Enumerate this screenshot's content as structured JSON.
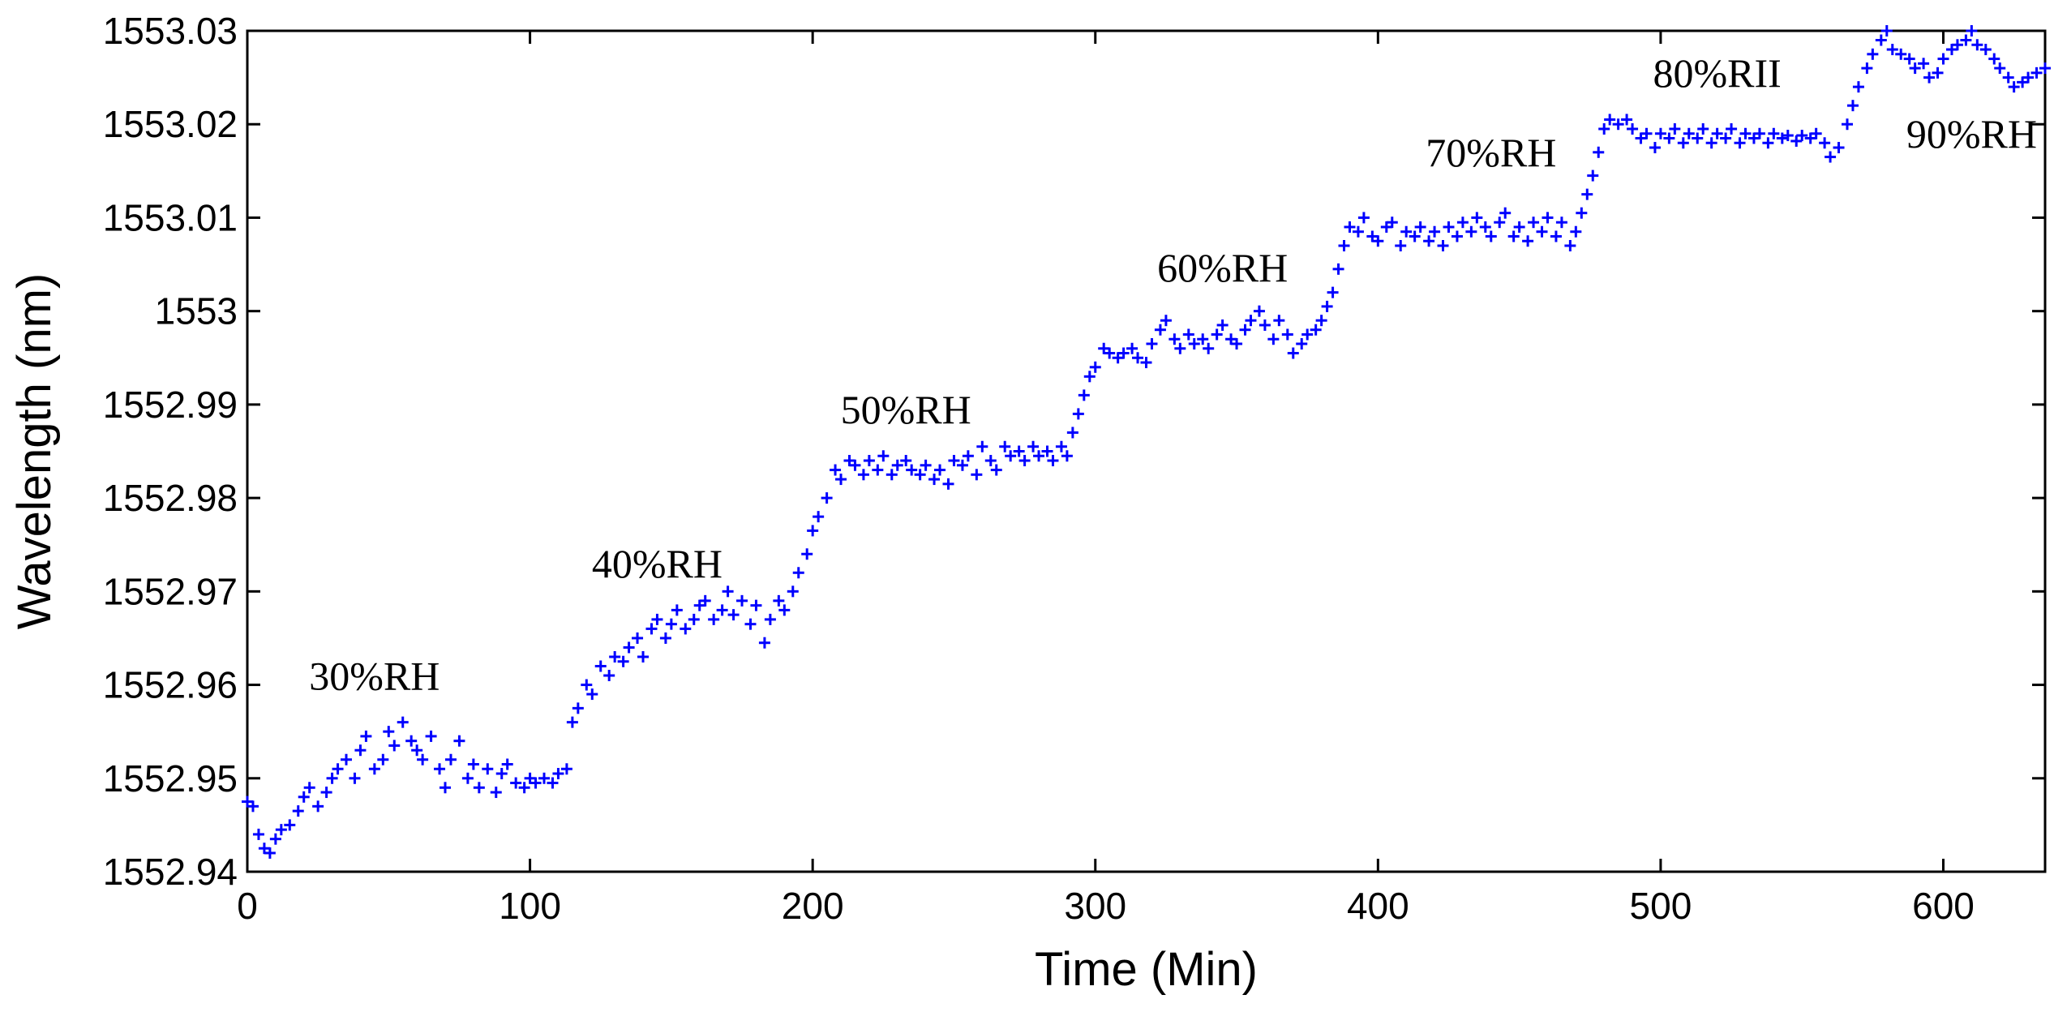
{
  "chart_data": {
    "type": "scatter",
    "title": "",
    "xlabel": "Time (Min)",
    "ylabel": "Wavelength (nm)",
    "xlim": [
      0,
      636
    ],
    "ylim": [
      1552.94,
      1553.03
    ],
    "x_ticks": [
      0,
      100,
      200,
      300,
      400,
      500,
      600
    ],
    "x_tick_labels": [
      "0",
      "100",
      "200",
      "300",
      "400",
      "500",
      "600"
    ],
    "y_ticks": [
      1552.94,
      1552.95,
      1552.96,
      1552.97,
      1552.98,
      1552.99,
      1553.0,
      1553.01,
      1553.02,
      1553.03
    ],
    "y_tick_labels": [
      "1552.94",
      "1552.95",
      "1552.96",
      "1552.97",
      "1552.98",
      "1552.99",
      "1553",
      "1553.01",
      "1553.02",
      "1553.03"
    ],
    "grid": false,
    "marker": "+",
    "series_color": "#0000ff",
    "annotations": [
      {
        "text": "30%RH",
        "x": 45,
        "y": 1552.9595
      },
      {
        "text": "40%RH",
        "x": 145,
        "y": 1552.9715
      },
      {
        "text": "50%RH",
        "x": 233,
        "y": 1552.988
      },
      {
        "text": "60%RH",
        "x": 345,
        "y": 1553.0032
      },
      {
        "text": "70%RH",
        "x": 440,
        "y": 1553.0155
      },
      {
        "text": "80%RII",
        "x": 520,
        "y": 1553.024
      },
      {
        "text": "90%RH",
        "x": 610,
        "y": 1553.0175
      }
    ],
    "segments": [
      {
        "label": "30%RH",
        "points": [
          [
            0,
            1552.9475
          ],
          [
            2,
            1552.947
          ],
          [
            4,
            1552.944
          ],
          [
            6,
            1552.9425
          ],
          [
            8,
            1552.942
          ],
          [
            10,
            1552.9435
          ],
          [
            12,
            1552.9445
          ],
          [
            15,
            1552.945
          ],
          [
            18,
            1552.9465
          ],
          [
            20,
            1552.948
          ],
          [
            22,
            1552.949
          ],
          [
            25,
            1552.947
          ],
          [
            28,
            1552.9485
          ],
          [
            30,
            1552.95
          ],
          [
            32,
            1552.951
          ],
          [
            35,
            1552.952
          ],
          [
            38,
            1552.95
          ],
          [
            40,
            1552.953
          ],
          [
            42,
            1552.9545
          ],
          [
            45,
            1552.951
          ],
          [
            48,
            1552.952
          ],
          [
            50,
            1552.955
          ],
          [
            52,
            1552.9535
          ],
          [
            55,
            1552.956
          ],
          [
            58,
            1552.954
          ],
          [
            60,
            1552.953
          ],
          [
            62,
            1552.952
          ],
          [
            65,
            1552.9545
          ],
          [
            68,
            1552.951
          ],
          [
            70,
            1552.949
          ],
          [
            72,
            1552.952
          ],
          [
            75,
            1552.954
          ],
          [
            78,
            1552.95
          ],
          [
            80,
            1552.9515
          ],
          [
            82,
            1552.949
          ],
          [
            85,
            1552.951
          ],
          [
            88,
            1552.9485
          ],
          [
            90,
            1552.9505
          ],
          [
            92,
            1552.9515
          ],
          [
            95,
            1552.9495
          ],
          [
            98,
            1552.949
          ],
          [
            100,
            1552.95
          ],
          [
            102,
            1552.9495
          ],
          [
            105,
            1552.95
          ],
          [
            108,
            1552.9495
          ],
          [
            110,
            1552.9505
          ],
          [
            113,
            1552.951
          ]
        ]
      },
      {
        "label": "40%RH",
        "points": [
          [
            115,
            1552.956
          ],
          [
            117,
            1552.9575
          ],
          [
            120,
            1552.96
          ],
          [
            122,
            1552.959
          ],
          [
            125,
            1552.962
          ],
          [
            128,
            1552.961
          ],
          [
            130,
            1552.963
          ],
          [
            133,
            1552.9625
          ],
          [
            135,
            1552.964
          ],
          [
            138,
            1552.965
          ],
          [
            140,
            1552.963
          ],
          [
            143,
            1552.966
          ],
          [
            145,
            1552.967
          ],
          [
            148,
            1552.965
          ],
          [
            150,
            1552.9665
          ],
          [
            152,
            1552.968
          ],
          [
            155,
            1552.966
          ],
          [
            158,
            1552.967
          ],
          [
            160,
            1552.9685
          ],
          [
            162,
            1552.969
          ],
          [
            165,
            1552.967
          ],
          [
            168,
            1552.968
          ],
          [
            170,
            1552.97
          ],
          [
            172,
            1552.9675
          ],
          [
            175,
            1552.969
          ],
          [
            178,
            1552.9665
          ],
          [
            180,
            1552.9685
          ],
          [
            183,
            1552.9645
          ],
          [
            185,
            1552.967
          ],
          [
            188,
            1552.969
          ],
          [
            190,
            1552.968
          ],
          [
            193,
            1552.97
          ],
          [
            195,
            1552.972
          ],
          [
            198,
            1552.974
          ]
        ]
      },
      {
        "label": "50%RH",
        "points": [
          [
            200,
            1552.9765
          ],
          [
            202,
            1552.978
          ],
          [
            205,
            1552.98
          ],
          [
            208,
            1552.983
          ],
          [
            210,
            1552.982
          ],
          [
            213,
            1552.984
          ],
          [
            215,
            1552.9835
          ],
          [
            218,
            1552.9825
          ],
          [
            220,
            1552.984
          ],
          [
            223,
            1552.983
          ],
          [
            225,
            1552.9845
          ],
          [
            228,
            1552.9825
          ],
          [
            230,
            1552.9835
          ],
          [
            233,
            1552.984
          ],
          [
            235,
            1552.983
          ],
          [
            238,
            1552.9825
          ],
          [
            240,
            1552.9835
          ],
          [
            243,
            1552.982
          ],
          [
            245,
            1552.983
          ],
          [
            248,
            1552.9815
          ],
          [
            250,
            1552.984
          ],
          [
            253,
            1552.9835
          ],
          [
            255,
            1552.9845
          ],
          [
            258,
            1552.9825
          ],
          [
            260,
            1552.9855
          ],
          [
            263,
            1552.984
          ],
          [
            265,
            1552.983
          ],
          [
            268,
            1552.9855
          ],
          [
            270,
            1552.9845
          ],
          [
            273,
            1552.985
          ],
          [
            275,
            1552.984
          ],
          [
            278,
            1552.9855
          ],
          [
            280,
            1552.9845
          ],
          [
            283,
            1552.985
          ],
          [
            285,
            1552.984
          ],
          [
            288,
            1552.9855
          ],
          [
            290,
            1552.9845
          ]
        ]
      },
      {
        "label": "60%RH",
        "points": [
          [
            292,
            1552.987
          ],
          [
            294,
            1552.989
          ],
          [
            296,
            1552.991
          ],
          [
            298,
            1552.993
          ],
          [
            300,
            1552.994
          ],
          [
            303,
            1552.996
          ],
          [
            305,
            1552.9955
          ],
          [
            308,
            1552.995
          ],
          [
            310,
            1552.9955
          ],
          [
            313,
            1552.996
          ],
          [
            315,
            1552.995
          ],
          [
            318,
            1552.9945
          ],
          [
            320,
            1552.9965
          ],
          [
            323,
            1552.998
          ],
          [
            325,
            1552.999
          ],
          [
            328,
            1552.997
          ],
          [
            330,
            1552.996
          ],
          [
            333,
            1552.9975
          ],
          [
            335,
            1552.9965
          ],
          [
            338,
            1552.997
          ],
          [
            340,
            1552.996
          ],
          [
            343,
            1552.9975
          ],
          [
            345,
            1552.9985
          ],
          [
            348,
            1552.997
          ],
          [
            350,
            1552.9965
          ],
          [
            353,
            1552.998
          ],
          [
            355,
            1552.999
          ],
          [
            358,
            1553.0
          ],
          [
            360,
            1552.9985
          ],
          [
            363,
            1552.997
          ],
          [
            365,
            1552.999
          ],
          [
            368,
            1552.9975
          ],
          [
            370,
            1552.9955
          ],
          [
            373,
            1552.9965
          ],
          [
            375,
            1552.9975
          ],
          [
            378,
            1552.998
          ],
          [
            380,
            1552.999
          ]
        ]
      },
      {
        "label": "70%RH",
        "points": [
          [
            382,
            1553.0005
          ],
          [
            384,
            1553.002
          ],
          [
            386,
            1553.0045
          ],
          [
            388,
            1553.007
          ],
          [
            390,
            1553.009
          ],
          [
            393,
            1553.0085
          ],
          [
            395,
            1553.01
          ],
          [
            398,
            1553.008
          ],
          [
            400,
            1553.0075
          ],
          [
            403,
            1553.009
          ],
          [
            405,
            1553.0095
          ],
          [
            408,
            1553.007
          ],
          [
            410,
            1553.0085
          ],
          [
            413,
            1553.008
          ],
          [
            415,
            1553.009
          ],
          [
            418,
            1553.0075
          ],
          [
            420,
            1553.0085
          ],
          [
            423,
            1553.007
          ],
          [
            425,
            1553.009
          ],
          [
            428,
            1553.008
          ],
          [
            430,
            1553.0095
          ],
          [
            433,
            1553.0085
          ],
          [
            435,
            1553.01
          ],
          [
            438,
            1553.009
          ],
          [
            440,
            1553.008
          ],
          [
            443,
            1553.0095
          ],
          [
            445,
            1553.0105
          ],
          [
            448,
            1553.008
          ],
          [
            450,
            1553.009
          ],
          [
            453,
            1553.0075
          ],
          [
            455,
            1553.0095
          ],
          [
            458,
            1553.0085
          ],
          [
            460,
            1553.01
          ],
          [
            463,
            1553.008
          ],
          [
            465,
            1553.0095
          ],
          [
            468,
            1553.007
          ],
          [
            470,
            1553.0085
          ]
        ]
      },
      {
        "label": "80%RII",
        "points": [
          [
            472,
            1553.0105
          ],
          [
            474,
            1553.0125
          ],
          [
            476,
            1553.0145
          ],
          [
            478,
            1553.017
          ],
          [
            480,
            1553.0195
          ],
          [
            482,
            1553.0205
          ],
          [
            485,
            1553.02
          ],
          [
            488,
            1553.0205
          ],
          [
            490,
            1553.0195
          ],
          [
            493,
            1553.0185
          ],
          [
            495,
            1553.019
          ],
          [
            498,
            1553.0175
          ],
          [
            500,
            1553.019
          ],
          [
            503,
            1553.0185
          ],
          [
            505,
            1553.0195
          ],
          [
            508,
            1553.018
          ],
          [
            510,
            1553.019
          ],
          [
            513,
            1553.0185
          ],
          [
            515,
            1553.0195
          ],
          [
            518,
            1553.018
          ],
          [
            520,
            1553.019
          ],
          [
            523,
            1553.0185
          ],
          [
            525,
            1553.0195
          ],
          [
            528,
            1553.018
          ],
          [
            530,
            1553.019
          ],
          [
            533,
            1553.0185
          ],
          [
            535,
            1553.019
          ],
          [
            538,
            1553.018
          ],
          [
            540,
            1553.019
          ],
          [
            543,
            1553.0185
          ],
          [
            545,
            1553.0188
          ],
          [
            548,
            1553.0182
          ],
          [
            550,
            1553.0188
          ],
          [
            553,
            1553.0185
          ],
          [
            555,
            1553.019
          ],
          [
            558,
            1553.018
          ],
          [
            560,
            1553.0165
          ],
          [
            563,
            1553.0175
          ]
        ]
      },
      {
        "label": "90%RH",
        "points": [
          [
            566,
            1553.02
          ],
          [
            568,
            1553.022
          ],
          [
            570,
            1553.024
          ],
          [
            573,
            1553.026
          ],
          [
            575,
            1553.0275
          ],
          [
            578,
            1553.029
          ],
          [
            580,
            1553.03
          ],
          [
            582,
            1553.028
          ],
          [
            585,
            1553.0275
          ],
          [
            588,
            1553.027
          ],
          [
            590,
            1553.026
          ],
          [
            593,
            1553.0265
          ],
          [
            595,
            1553.025
          ],
          [
            598,
            1553.0255
          ],
          [
            600,
            1553.027
          ],
          [
            603,
            1553.028
          ],
          [
            605,
            1553.0285
          ],
          [
            608,
            1553.029
          ],
          [
            610,
            1553.03
          ],
          [
            612,
            1553.0285
          ],
          [
            615,
            1553.028
          ],
          [
            618,
            1553.027
          ],
          [
            620,
            1553.026
          ],
          [
            623,
            1553.025
          ],
          [
            625,
            1553.024
          ],
          [
            628,
            1553.0245
          ],
          [
            630,
            1553.025
          ],
          [
            633,
            1553.0255
          ],
          [
            636,
            1553.026
          ]
        ]
      }
    ]
  }
}
